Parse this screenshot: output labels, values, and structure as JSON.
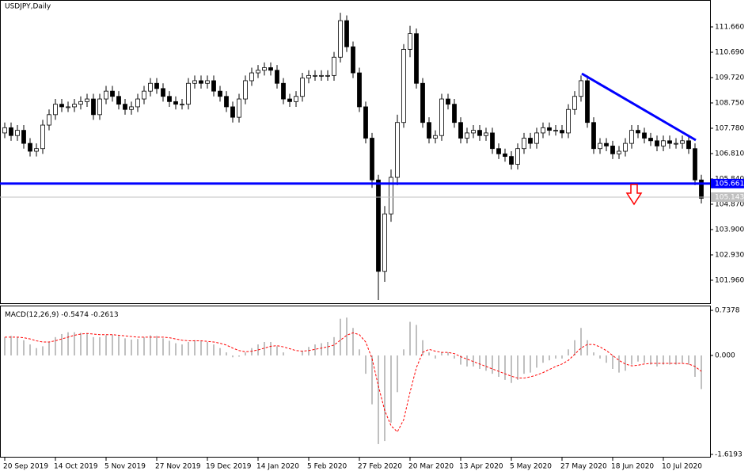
{
  "chart_data": [
    {
      "type": "candlestick",
      "title": "USDJPY,Daily",
      "categories": [
        "20 Sep 2019",
        null,
        null,
        null,
        null,
        null,
        null,
        null,
        "14 Oct 2019",
        null,
        null,
        null,
        null,
        null,
        null,
        null,
        "5 Nov 2019",
        null,
        null,
        null,
        null,
        null,
        null,
        null,
        "27 Nov 2019",
        null,
        null,
        null,
        null,
        null,
        null,
        null,
        "19 Dec 2019",
        null,
        null,
        null,
        null,
        null,
        null,
        null,
        "14 Jan 2020",
        null,
        null,
        null,
        null,
        null,
        null,
        null,
        "5 Feb 2020",
        null,
        null,
        null,
        null,
        null,
        null,
        null,
        "27 Feb 2020",
        null,
        null,
        null,
        null,
        null,
        null,
        null,
        "20 Mar 2020",
        null,
        null,
        null,
        null,
        null,
        null,
        null,
        "13 Apr 2020",
        null,
        null,
        null,
        null,
        null,
        null,
        null,
        "5 May 2020",
        null,
        null,
        null,
        null,
        null,
        null,
        null,
        "27 May 2020",
        null,
        null,
        null,
        null,
        null,
        null,
        null,
        "18 Jun 2020",
        null,
        null,
        null,
        null,
        null,
        null,
        null,
        "10 Jul 2020",
        null,
        null,
        null,
        null,
        null,
        null
      ],
      "open": [
        107.6,
        107.8,
        107.5,
        107.7,
        107.2,
        106.9,
        107.0,
        107.9,
        108.3,
        108.7,
        108.6,
        108.6,
        108.7,
        108.8,
        108.9,
        108.3,
        108.9,
        109.2,
        109.0,
        108.7,
        108.5,
        108.6,
        108.9,
        109.2,
        109.5,
        109.3,
        109.0,
        108.8,
        108.7,
        108.7,
        109.5,
        109.6,
        109.5,
        109.6,
        109.2,
        109.0,
        108.6,
        108.2,
        108.9,
        109.6,
        109.9,
        110.0,
        110.1,
        110.0,
        109.5,
        108.9,
        108.8,
        109.0,
        109.7,
        109.8,
        109.8,
        109.8,
        109.8,
        110.5,
        111.9,
        110.9,
        109.9,
        108.6,
        107.4,
        105.8,
        102.3,
        104.5,
        105.9,
        108.0,
        110.8,
        111.4,
        109.5,
        108.0,
        107.4,
        107.5,
        108.9,
        108.7,
        108.0,
        107.4,
        107.6,
        107.7,
        107.5,
        107.6,
        107.0,
        106.8,
        106.7,
        106.4,
        107.0,
        107.4,
        107.2,
        107.6,
        107.8,
        107.7,
        107.7,
        107.6,
        108.5,
        109.0,
        109.6,
        108.0,
        107.0,
        107.2,
        107.1,
        106.8,
        106.9,
        107.2,
        107.7,
        107.6,
        107.4,
        107.3,
        107.1,
        107.3,
        107.2,
        107.2,
        107.3,
        107.0,
        105.8
      ],
      "high": [
        108.0,
        108.0,
        107.9,
        107.9,
        107.4,
        107.2,
        108.1,
        108.5,
        108.9,
        108.9,
        108.8,
        108.9,
        109.0,
        109.1,
        109.1,
        109.1,
        109.4,
        109.4,
        109.2,
        108.9,
        108.8,
        109.1,
        109.4,
        109.7,
        109.7,
        109.5,
        109.2,
        109.0,
        108.9,
        109.7,
        109.8,
        109.8,
        109.8,
        109.8,
        109.4,
        109.2,
        108.8,
        109.1,
        109.8,
        110.1,
        110.2,
        110.3,
        110.3,
        110.2,
        109.7,
        109.1,
        109.2,
        109.9,
        110.0,
        110.0,
        110.0,
        110.0,
        110.7,
        112.2,
        112.1,
        111.1,
        110.1,
        108.8,
        107.6,
        106.0,
        104.8,
        106.2,
        108.3,
        111.0,
        111.7,
        111.6,
        109.7,
        108.2,
        107.7,
        109.1,
        109.1,
        108.9,
        108.2,
        107.8,
        107.9,
        107.9,
        107.8,
        107.8,
        107.2,
        107.0,
        106.9,
        107.2,
        107.6,
        107.6,
        107.8,
        108.0,
        108.0,
        107.9,
        107.9,
        108.7,
        109.2,
        109.8,
        109.8,
        108.2,
        107.4,
        107.4,
        107.3,
        107.1,
        107.4,
        107.9,
        107.9,
        107.8,
        107.6,
        107.5,
        107.5,
        107.5,
        107.4,
        107.5,
        107.5,
        107.2,
        106.0
      ],
      "low": [
        107.4,
        107.3,
        107.3,
        107.0,
        106.7,
        106.7,
        106.8,
        107.7,
        108.1,
        108.4,
        108.4,
        108.4,
        108.5,
        108.6,
        108.1,
        108.1,
        108.7,
        108.8,
        108.5,
        108.3,
        108.3,
        108.4,
        108.7,
        109.0,
        109.1,
        108.8,
        108.6,
        108.5,
        108.5,
        108.5,
        109.3,
        109.3,
        109.3,
        109.0,
        108.8,
        108.4,
        108.0,
        108.0,
        108.7,
        109.4,
        109.7,
        109.8,
        109.8,
        109.3,
        108.7,
        108.6,
        108.6,
        108.8,
        109.5,
        109.6,
        109.6,
        109.6,
        109.6,
        110.3,
        110.7,
        109.7,
        108.4,
        107.2,
        105.5,
        101.2,
        101.9,
        104.2,
        105.6,
        107.8,
        110.5,
        109.3,
        107.8,
        107.2,
        107.2,
        107.3,
        108.5,
        107.8,
        107.2,
        107.2,
        107.4,
        107.3,
        107.3,
        106.8,
        106.6,
        106.5,
        106.2,
        106.2,
        106.8,
        107.0,
        107.0,
        107.4,
        107.5,
        107.5,
        107.4,
        107.4,
        108.3,
        108.8,
        107.8,
        106.8,
        106.8,
        106.9,
        106.6,
        106.6,
        106.7,
        107.0,
        107.4,
        107.2,
        107.1,
        106.9,
        106.9,
        107.0,
        107.0,
        107.0,
        106.8,
        105.6,
        104.9
      ],
      "close": [
        107.8,
        107.5,
        107.7,
        107.2,
        106.9,
        107.0,
        107.9,
        108.3,
        108.7,
        108.6,
        108.6,
        108.7,
        108.8,
        108.9,
        108.3,
        108.9,
        109.2,
        109.0,
        108.7,
        108.5,
        108.6,
        108.9,
        109.2,
        109.5,
        109.3,
        109.0,
        108.8,
        108.7,
        108.7,
        109.5,
        109.6,
        109.5,
        109.6,
        109.2,
        109.0,
        108.6,
        108.2,
        108.9,
        109.6,
        109.9,
        110.0,
        110.1,
        110.0,
        109.5,
        108.9,
        108.8,
        109.0,
        109.7,
        109.8,
        109.8,
        109.8,
        109.8,
        110.5,
        111.9,
        110.9,
        109.9,
        108.6,
        107.4,
        105.8,
        102.3,
        104.5,
        105.9,
        108.0,
        110.8,
        111.4,
        109.5,
        108.0,
        107.4,
        107.5,
        108.9,
        108.7,
        108.0,
        107.4,
        107.6,
        107.7,
        107.5,
        107.6,
        107.0,
        106.8,
        106.7,
        106.4,
        107.0,
        107.4,
        107.2,
        107.6,
        107.8,
        107.7,
        107.7,
        107.6,
        108.5,
        109.0,
        109.6,
        108.0,
        107.0,
        107.2,
        107.1,
        106.8,
        106.9,
        107.2,
        107.7,
        107.6,
        107.4,
        107.3,
        107.1,
        107.3,
        107.2,
        107.2,
        107.3,
        107.0,
        105.8,
        105.1
      ],
      "ylim": [
        101.08,
        112.63
      ],
      "yticks": [
        {
          "value": 111.66,
          "label": "111.660"
        },
        {
          "value": 110.69,
          "label": "110.690"
        },
        {
          "value": 109.72,
          "label": "109.720"
        },
        {
          "value": 108.75,
          "label": "108.750"
        },
        {
          "value": 107.78,
          "label": "107.780"
        },
        {
          "value": 106.81,
          "label": "106.810"
        },
        {
          "value": 105.84,
          "label": "105.840"
        },
        {
          "value": 104.87,
          "label": "104.870"
        },
        {
          "value": 103.9,
          "label": "103.900"
        },
        {
          "value": 102.93,
          "label": "102.930"
        },
        {
          "value": 101.96,
          "label": "101.960"
        }
      ],
      "hlines": [
        {
          "value": 105.661,
          "color": "#0000ff"
        },
        {
          "value": 105.143,
          "color": "#c0c0c0"
        }
      ]
    },
    {
      "type": "macd",
      "title": "MACD(12,26,9)",
      "main_value": -0.5474,
      "signal_value": -0.2613,
      "series": [
        {
          "color": "#c0c0c0",
          "values": [
            0.3,
            0.32,
            0.3,
            0.25,
            0.18,
            0.12,
            0.15,
            0.22,
            0.3,
            0.35,
            0.38,
            0.38,
            0.37,
            0.36,
            0.3,
            0.3,
            0.33,
            0.34,
            0.32,
            0.28,
            0.26,
            0.27,
            0.3,
            0.33,
            0.32,
            0.28,
            0.24,
            0.2,
            0.18,
            0.22,
            0.25,
            0.24,
            0.22,
            0.18,
            0.12,
            0.05,
            -0.03,
            -0.02,
            0.05,
            0.12,
            0.18,
            0.22,
            0.22,
            0.15,
            0.05,
            0.0,
            0.0,
            0.08,
            0.14,
            0.18,
            0.2,
            0.22,
            0.3,
            0.6,
            0.62,
            0.45,
            0.1,
            -0.3,
            -0.8,
            -1.45,
            -1.4,
            -1.1,
            -0.6,
            0.1,
            0.55,
            0.5,
            0.25,
            0.05,
            -0.05,
            0.05,
            0.05,
            -0.05,
            -0.15,
            -0.18,
            -0.18,
            -0.22,
            -0.25,
            -0.3,
            -0.35,
            -0.4,
            -0.45,
            -0.4,
            -0.3,
            -0.28,
            -0.2,
            -0.12,
            -0.08,
            -0.05,
            -0.05,
            0.1,
            0.25,
            0.45,
            0.25,
            0.05,
            -0.05,
            -0.12,
            -0.22,
            -0.28,
            -0.25,
            -0.15,
            -0.1,
            -0.12,
            -0.15,
            -0.18,
            -0.15,
            -0.15,
            -0.15,
            -0.12,
            -0.15,
            -0.35,
            -0.55
          ]
        },
        {
          "color": "#ff0000",
          "values": [
            0.3,
            0.3,
            0.3,
            0.29,
            0.27,
            0.24,
            0.22,
            0.22,
            0.24,
            0.27,
            0.3,
            0.33,
            0.35,
            0.36,
            0.35,
            0.34,
            0.34,
            0.34,
            0.33,
            0.32,
            0.31,
            0.3,
            0.3,
            0.3,
            0.3,
            0.3,
            0.29,
            0.27,
            0.25,
            0.24,
            0.24,
            0.24,
            0.23,
            0.22,
            0.2,
            0.17,
            0.12,
            0.08,
            0.06,
            0.07,
            0.09,
            0.12,
            0.15,
            0.16,
            0.14,
            0.11,
            0.08,
            0.07,
            0.08,
            0.1,
            0.12,
            0.14,
            0.17,
            0.25,
            0.33,
            0.37,
            0.34,
            0.22,
            -0.05,
            -0.5,
            -0.9,
            -1.15,
            -1.25,
            -1.05,
            -0.6,
            -0.2,
            0.05,
            0.1,
            0.07,
            0.05,
            0.05,
            0.03,
            -0.02,
            -0.06,
            -0.1,
            -0.14,
            -0.18,
            -0.22,
            -0.26,
            -0.3,
            -0.34,
            -0.37,
            -0.37,
            -0.35,
            -0.32,
            -0.28,
            -0.23,
            -0.18,
            -0.14,
            -0.08,
            0.02,
            0.12,
            0.18,
            0.18,
            0.14,
            0.08,
            0.0,
            -0.08,
            -0.14,
            -0.17,
            -0.16,
            -0.14,
            -0.13,
            -0.13,
            -0.13,
            -0.13,
            -0.13,
            -0.13,
            -0.14,
            -0.18,
            -0.26
          ]
        }
      ],
      "ylim": [
        -1.671,
        0.803
      ],
      "yticks": [
        0.7378,
        {
          "value": 0,
          "label": "0.000"
        },
        -1.6193
      ]
    }
  ]
}
